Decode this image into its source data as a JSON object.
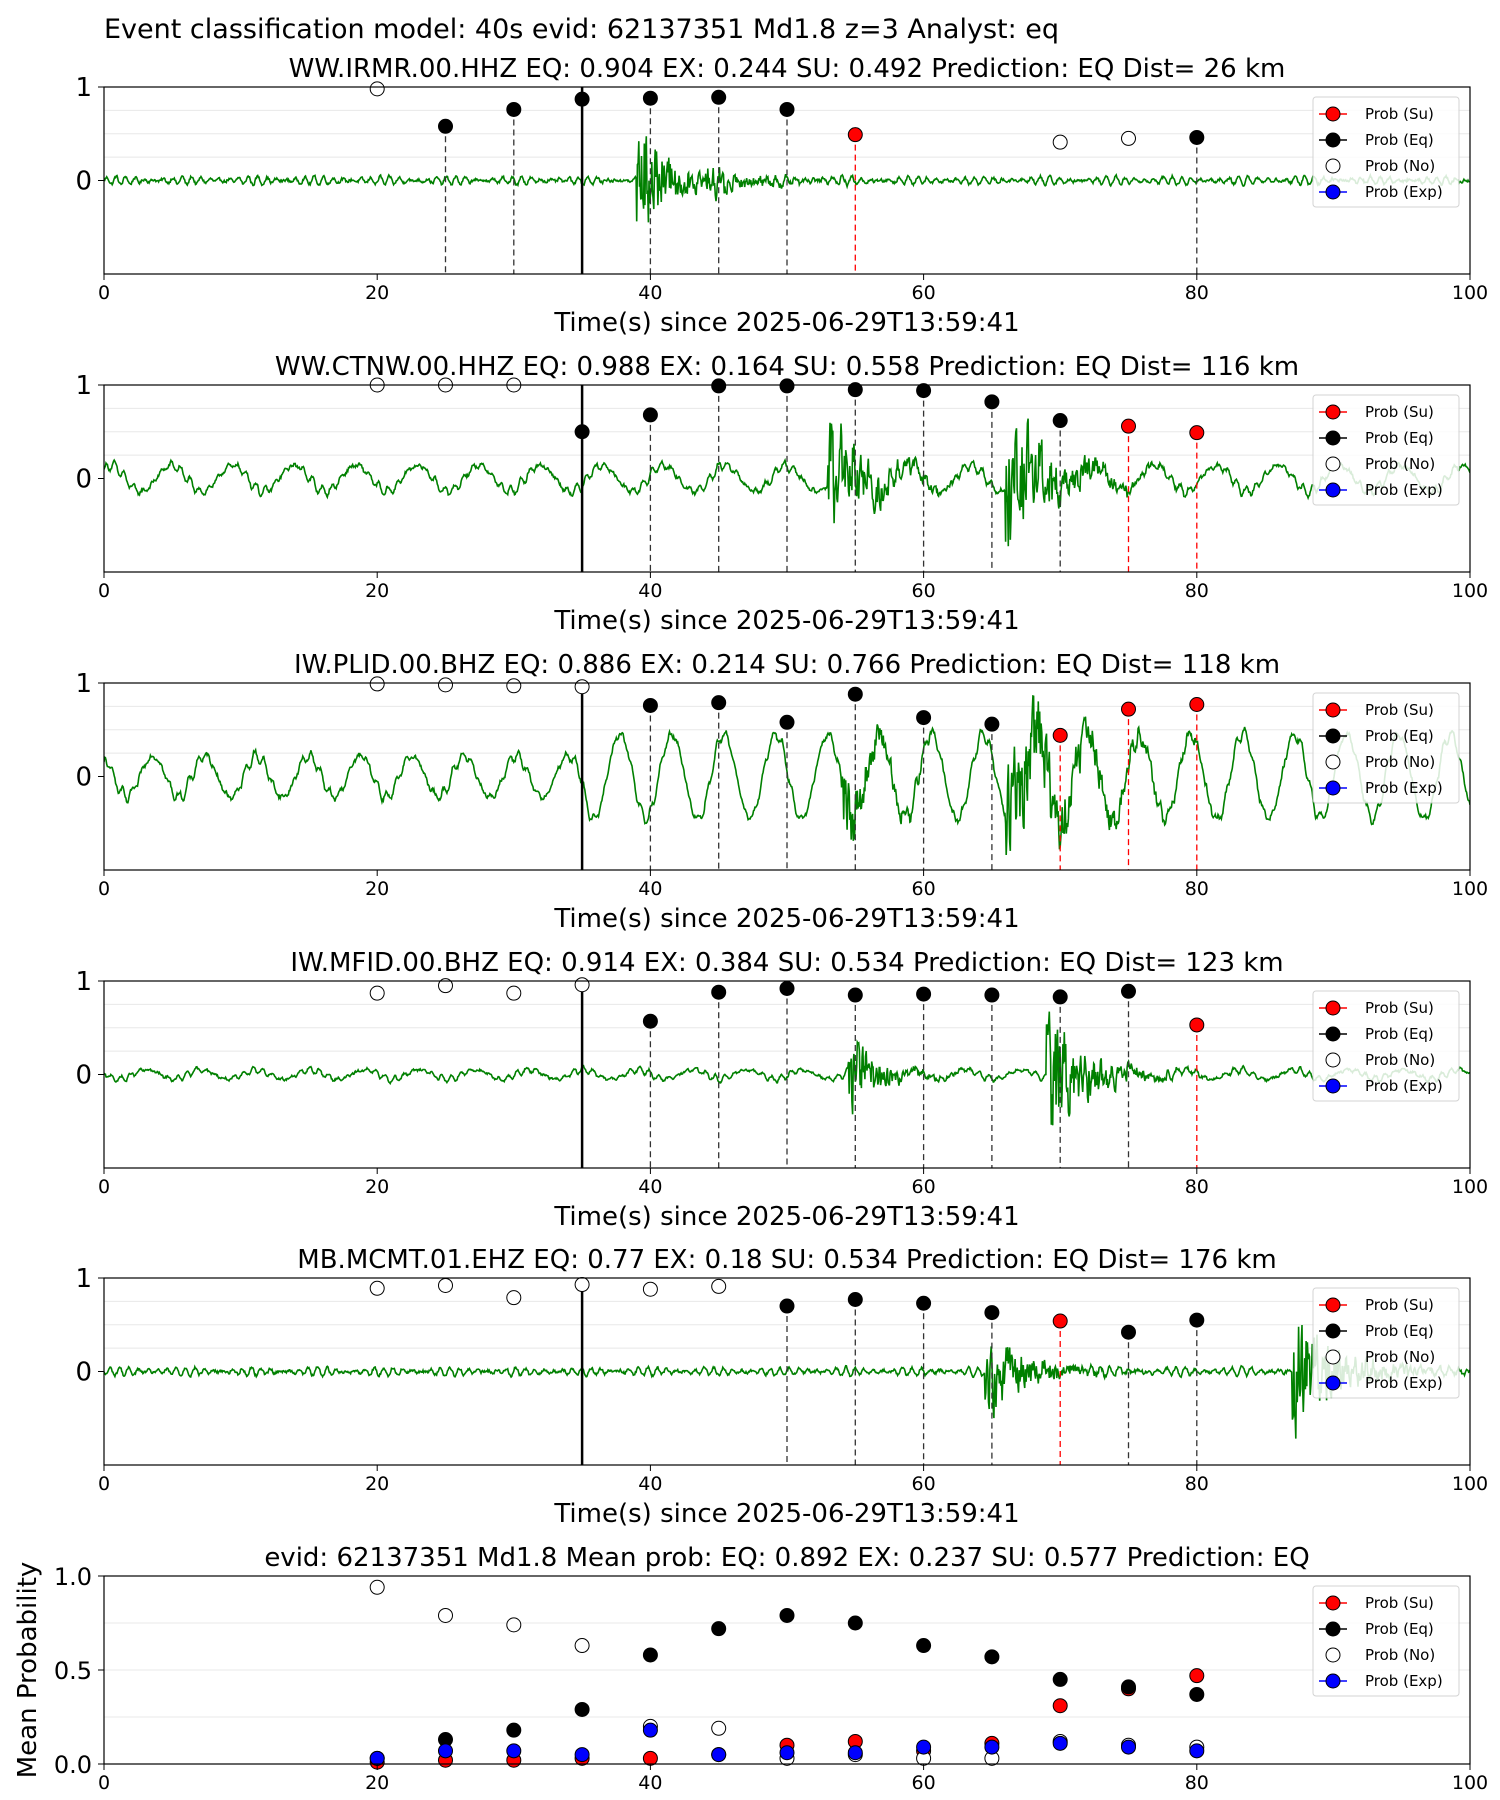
{
  "title": "Event classification model: 40s evid: 62137351 Md1.8 z=3 Analyst: eq",
  "legend_labels": [
    "Prob (Su)",
    "Prob (Eq)",
    "Prob (No)",
    "Prob (Exp)"
  ],
  "colors": {
    "su": "#ff0000",
    "eq": "#000000",
    "no": "#ffffff",
    "exp": "#0000ff",
    "trace": "#008000",
    "trace_light": "#c8e6c8"
  },
  "chart_data": [
    {
      "type": "line",
      "title": "WW.IRMR.00.HHZ   EQ: 0.904  EX: 0.244  SU: 0.492   Prediction: EQ    Dist= 26 km",
      "xlabel": "Time(s) since 2025-06-29T13:59:41",
      "xlim": [
        0,
        100
      ],
      "ylim": [
        -1,
        1
      ],
      "xticks": [
        "0",
        "20",
        "40",
        "60",
        "80",
        "100"
      ],
      "yticks": [
        "0",
        "1"
      ],
      "pick_time": 35,
      "trace": {
        "noise": 0.05,
        "bursts": [
          {
            "start": 39,
            "end": 48,
            "amp": 1.0,
            "decay": 0.15
          },
          {
            "start": 44,
            "end": 60,
            "amp": 0.25,
            "decay": 0.1
          }
        ]
      },
      "points": [
        {
          "x": 20,
          "y": 0.98,
          "cls": "no"
        },
        {
          "x": 25,
          "y": 0.58,
          "cls": "eq"
        },
        {
          "x": 30,
          "y": 0.76,
          "cls": "eq"
        },
        {
          "x": 35,
          "y": 0.87,
          "cls": "eq"
        },
        {
          "x": 40,
          "y": 0.88,
          "cls": "eq"
        },
        {
          "x": 45,
          "y": 0.89,
          "cls": "eq"
        },
        {
          "x": 50,
          "y": 0.76,
          "cls": "eq"
        },
        {
          "x": 55,
          "y": 0.49,
          "cls": "su"
        },
        {
          "x": 70,
          "y": 0.41,
          "cls": "no"
        },
        {
          "x": 75,
          "y": 0.45,
          "cls": "no"
        },
        {
          "x": 80,
          "y": 0.46,
          "cls": "eq"
        }
      ]
    },
    {
      "type": "line",
      "title": "WW.CTNW.00.HHZ   EQ: 0.988  EX: 0.164  SU: 0.558   Prediction: EQ    Dist= 116 km",
      "xlabel": "Time(s) since 2025-06-29T13:59:41",
      "xlim": [
        0,
        100
      ],
      "ylim": [
        -1,
        1
      ],
      "xticks": [
        "0",
        "20",
        "40",
        "60",
        "80",
        "100"
      ],
      "yticks": [
        "0",
        "1"
      ],
      "pick_time": 35,
      "trace": {
        "noise": 0.06,
        "wave_amp": 0.14,
        "wave_period": 4.5,
        "bursts": [
          {
            "start": 53,
            "end": 57,
            "amp": 0.9,
            "decay": 0.12
          },
          {
            "start": 66,
            "end": 75,
            "amp": 1.0,
            "decay": 0.1
          }
        ]
      },
      "points": [
        {
          "x": 20,
          "y": 1.0,
          "cls": "no"
        },
        {
          "x": 25,
          "y": 1.0,
          "cls": "no"
        },
        {
          "x": 30,
          "y": 1.0,
          "cls": "no"
        },
        {
          "x": 35,
          "y": 0.5,
          "cls": "eq"
        },
        {
          "x": 40,
          "y": 0.68,
          "cls": "eq"
        },
        {
          "x": 45,
          "y": 0.99,
          "cls": "eq"
        },
        {
          "x": 50,
          "y": 0.99,
          "cls": "eq"
        },
        {
          "x": 55,
          "y": 0.95,
          "cls": "eq"
        },
        {
          "x": 60,
          "y": 0.94,
          "cls": "eq"
        },
        {
          "x": 65,
          "y": 0.82,
          "cls": "eq"
        },
        {
          "x": 70,
          "y": 0.62,
          "cls": "eq"
        },
        {
          "x": 75,
          "y": 0.56,
          "cls": "su"
        },
        {
          "x": 80,
          "y": 0.49,
          "cls": "su"
        }
      ]
    },
    {
      "type": "line",
      "title": "IW.PLID.00.BHZ   EQ: 0.886  EX: 0.214  SU: 0.766   Prediction: EQ    Dist= 118 km",
      "xlabel": "Time(s) since 2025-06-29T13:59:41",
      "xlim": [
        0,
        100
      ],
      "ylim": [
        -1,
        1
      ],
      "xticks": [
        "0",
        "20",
        "40",
        "60",
        "80",
        "100"
      ],
      "yticks": [
        "0",
        "1"
      ],
      "pick_time": 35,
      "trace": {
        "noise": 0.07,
        "wave_amp": 0.22,
        "wave_period": 3.8,
        "wave_grow": [
          35,
          0.45
        ],
        "bursts": [
          {
            "start": 54,
            "end": 60,
            "amp": 0.55,
            "decay": 0.12
          },
          {
            "start": 66,
            "end": 82,
            "amp": 0.9,
            "decay": 0.07
          }
        ]
      },
      "points": [
        {
          "x": 20,
          "y": 0.99,
          "cls": "no"
        },
        {
          "x": 25,
          "y": 0.98,
          "cls": "no"
        },
        {
          "x": 30,
          "y": 0.97,
          "cls": "no"
        },
        {
          "x": 35,
          "y": 0.96,
          "cls": "no"
        },
        {
          "x": 40,
          "y": 0.76,
          "cls": "eq"
        },
        {
          "x": 45,
          "y": 0.79,
          "cls": "eq"
        },
        {
          "x": 50,
          "y": 0.58,
          "cls": "eq"
        },
        {
          "x": 55,
          "y": 0.88,
          "cls": "eq"
        },
        {
          "x": 60,
          "y": 0.63,
          "cls": "eq"
        },
        {
          "x": 65,
          "y": 0.56,
          "cls": "eq"
        },
        {
          "x": 70,
          "y": 0.44,
          "cls": "su"
        },
        {
          "x": 75,
          "y": 0.72,
          "cls": "su"
        },
        {
          "x": 80,
          "y": 0.77,
          "cls": "su"
        }
      ]
    },
    {
      "type": "line",
      "title": "IW.MFID.00.BHZ   EQ: 0.914  EX: 0.384  SU: 0.534   Prediction: EQ    Dist= 123 km",
      "xlabel": "Time(s) since 2025-06-29T13:59:41",
      "xlim": [
        0,
        100
      ],
      "ylim": [
        -1,
        1
      ],
      "xticks": [
        "0",
        "20",
        "40",
        "60",
        "80",
        "100"
      ],
      "yticks": [
        "0",
        "1"
      ],
      "pick_time": 35,
      "trace": {
        "noise": 0.04,
        "wave_amp": 0.05,
        "wave_period": 4.0,
        "bursts": [
          {
            "start": 54.5,
            "end": 62,
            "amp": 0.6,
            "decay": 0.15
          },
          {
            "start": 69,
            "end": 78,
            "amp": 1.0,
            "decay": 0.12
          }
        ]
      },
      "points": [
        {
          "x": 20,
          "y": 0.87,
          "cls": "no"
        },
        {
          "x": 25,
          "y": 0.95,
          "cls": "no"
        },
        {
          "x": 30,
          "y": 0.87,
          "cls": "no"
        },
        {
          "x": 35,
          "y": 0.96,
          "cls": "no"
        },
        {
          "x": 40,
          "y": 0.57,
          "cls": "eq"
        },
        {
          "x": 45,
          "y": 0.88,
          "cls": "eq"
        },
        {
          "x": 50,
          "y": 0.92,
          "cls": "eq"
        },
        {
          "x": 55,
          "y": 0.85,
          "cls": "eq"
        },
        {
          "x": 60,
          "y": 0.86,
          "cls": "eq"
        },
        {
          "x": 65,
          "y": 0.85,
          "cls": "eq"
        },
        {
          "x": 70,
          "y": 0.83,
          "cls": "eq"
        },
        {
          "x": 75,
          "y": 0.89,
          "cls": "eq"
        },
        {
          "x": 80,
          "y": 0.53,
          "cls": "su"
        }
      ]
    },
    {
      "type": "line",
      "title": "MB.MCMT.01.EHZ   EQ: 0.77  EX: 0.18  SU: 0.534   Prediction: EQ    Dist= 176 km",
      "xlabel": "Time(s) since 2025-06-29T13:59:41",
      "xlim": [
        0,
        100
      ],
      "ylim": [
        -1,
        1
      ],
      "xticks": [
        "0",
        "20",
        "40",
        "60",
        "80",
        "100"
      ],
      "yticks": [
        "0",
        "1"
      ],
      "pick_time": 35,
      "trace": {
        "noise": 0.05,
        "bursts": [
          {
            "start": 64.5,
            "end": 75,
            "amp": 0.6,
            "decay": 0.1
          },
          {
            "start": 87,
            "end": 94,
            "amp": 0.9,
            "decay": 0.1
          }
        ]
      },
      "points": [
        {
          "x": 20,
          "y": 0.89,
          "cls": "no"
        },
        {
          "x": 25,
          "y": 0.92,
          "cls": "no"
        },
        {
          "x": 30,
          "y": 0.79,
          "cls": "no"
        },
        {
          "x": 35,
          "y": 0.93,
          "cls": "no"
        },
        {
          "x": 40,
          "y": 0.88,
          "cls": "no"
        },
        {
          "x": 45,
          "y": 0.91,
          "cls": "no"
        },
        {
          "x": 50,
          "y": 0.7,
          "cls": "eq"
        },
        {
          "x": 55,
          "y": 0.77,
          "cls": "eq"
        },
        {
          "x": 60,
          "y": 0.73,
          "cls": "eq"
        },
        {
          "x": 65,
          "y": 0.63,
          "cls": "eq"
        },
        {
          "x": 70,
          "y": 0.54,
          "cls": "su"
        },
        {
          "x": 75,
          "y": 0.42,
          "cls": "eq"
        },
        {
          "x": 80,
          "y": 0.55,
          "cls": "eq"
        }
      ]
    },
    {
      "type": "scatter",
      "title": "evid: 62137351  Md1.8   Mean prob:   EQ: 0.892  EX: 0.237  SU: 0.577   Prediction: EQ",
      "ylabel": "Mean Probability",
      "xlim": [
        0,
        100
      ],
      "ylim": [
        0,
        1
      ],
      "xticks": [
        "0",
        "20",
        "40",
        "60",
        "80",
        "100"
      ],
      "yticks": [
        "0.0",
        "0.5",
        "1.0"
      ],
      "x": [
        20,
        25,
        30,
        35,
        40,
        45,
        50,
        55,
        60,
        65,
        70,
        75,
        80
      ],
      "series": [
        {
          "name": "Prob (Su)",
          "cls": "su",
          "values": [
            0.01,
            0.02,
            0.02,
            0.03,
            0.03,
            0.05,
            0.1,
            0.12,
            0.07,
            0.11,
            0.31,
            0.4,
            0.47
          ]
        },
        {
          "name": "Prob (Eq)",
          "cls": "eq",
          "values": [
            0.03,
            0.13,
            0.18,
            0.29,
            0.58,
            0.72,
            0.79,
            0.75,
            0.63,
            0.57,
            0.45,
            0.41,
            0.37
          ]
        },
        {
          "name": "Prob (No)",
          "cls": "no",
          "values": [
            0.94,
            0.79,
            0.74,
            0.63,
            0.2,
            0.19,
            0.03,
            0.05,
            0.03,
            0.03,
            0.12,
            0.1,
            0.09
          ]
        },
        {
          "name": "Prob (Exp)",
          "cls": "exp",
          "values": [
            0.03,
            0.07,
            0.07,
            0.05,
            0.18,
            0.05,
            0.06,
            0.06,
            0.09,
            0.09,
            0.11,
            0.09,
            0.07
          ]
        }
      ]
    }
  ]
}
